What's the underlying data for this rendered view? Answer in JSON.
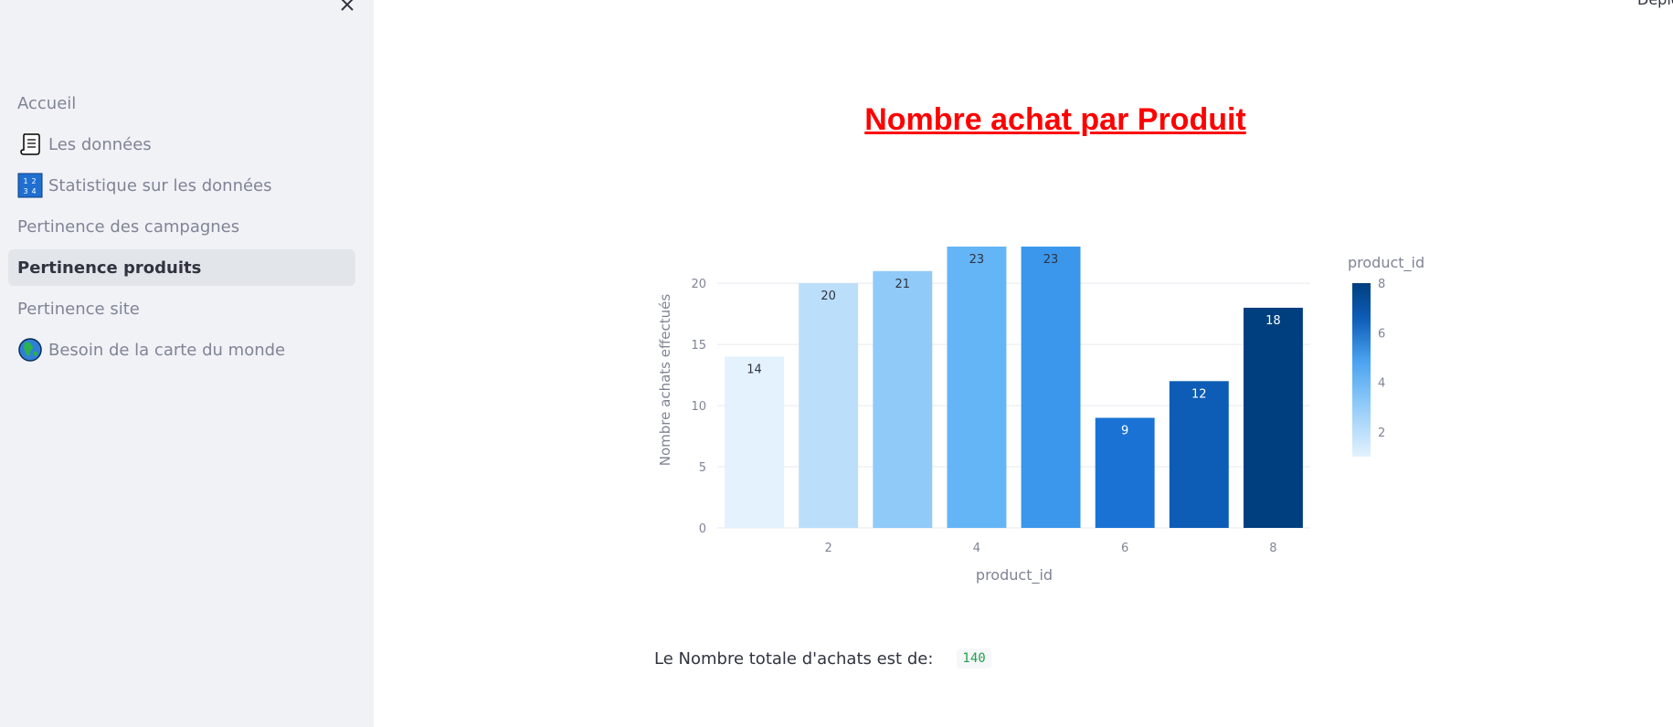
{
  "sidebar": {
    "items": [
      {
        "label": "Accueil",
        "icon": "",
        "active": false
      },
      {
        "label": "Les données",
        "icon": "scroll-icon",
        "active": false
      },
      {
        "label": "Statistique sur les données",
        "icon": "numbers-1234-icon",
        "active": false
      },
      {
        "label": "Pertinence des campagnes",
        "icon": "",
        "active": false
      },
      {
        "label": "Pertinence produits",
        "icon": "",
        "active": true
      },
      {
        "label": "Pertinence site",
        "icon": "",
        "active": false
      },
      {
        "label": "Besoin de la carte du monde",
        "icon": "globe-icon",
        "active": false
      }
    ],
    "number_icon_digits": [
      "1",
      "2",
      "3",
      "4"
    ]
  },
  "header": {
    "deploy_label": "Deplo"
  },
  "main": {
    "title": "Nombre achat par Produit",
    "total_label": "Le Nombre totale d'achats est de:",
    "total_value": "140"
  },
  "chart_data": {
    "type": "bar",
    "x": [
      1,
      2,
      3,
      4,
      5,
      6,
      7,
      8
    ],
    "values": [
      14,
      20,
      21,
      23,
      23,
      9,
      12,
      18
    ],
    "xlabel": "product_id",
    "ylabel": "Nombre achats effectués",
    "ylim": [
      0,
      23
    ],
    "yticks": [
      0,
      5,
      10,
      15,
      20
    ],
    "xticks": [
      2,
      4,
      6,
      8
    ],
    "grid": true,
    "colorbar": {
      "title": "product_id",
      "ticks": [
        2,
        4,
        6,
        8
      ],
      "range": [
        1,
        8
      ],
      "colors": [
        "#e3f2fd",
        "#bbdefb",
        "#90caf9",
        "#64b5f6",
        "#3a97ec",
        "#1a73d4",
        "#0d5cb6",
        "#003f7f"
      ]
    }
  }
}
